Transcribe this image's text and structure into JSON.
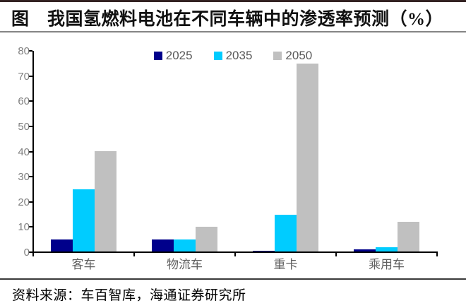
{
  "page": {
    "title": "图　我国氢燃料电池在不同车辆中的渗透率预测（%）",
    "source": "资料来源：车百智库，海通证券研究所"
  },
  "chart_data": {
    "type": "bar",
    "title": "我国氢燃料电池在不同车辆中的渗透率预测（%）",
    "categories": [
      "客车",
      "物流车",
      "重卡",
      "乘用车"
    ],
    "series": [
      {
        "name": "2025",
        "color": "#00008B",
        "values": [
          5,
          5,
          0.5,
          1
        ]
      },
      {
        "name": "2035",
        "color": "#00CCFF",
        "values": [
          25,
          5,
          15,
          2
        ]
      },
      {
        "name": "2050",
        "color": "#C0C0C0",
        "values": [
          40,
          10,
          75,
          12
        ]
      }
    ],
    "xlabel": "",
    "ylabel": "",
    "ylim": [
      0,
      80
    ],
    "ytick_step": 10,
    "grid": false,
    "legend_position": "top-center",
    "axis_color": "#000000",
    "ylabel_color": "#7f7f7f",
    "xlabel_color": "#5f5f5f"
  }
}
